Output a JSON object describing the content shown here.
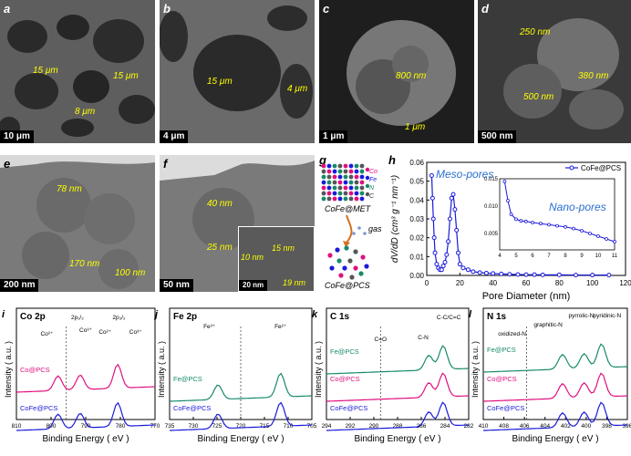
{
  "panels": {
    "a": {
      "label": "a",
      "scale": "10 μm",
      "annotations": [
        "15 μm",
        "15 μm",
        "8 μm"
      ]
    },
    "b": {
      "label": "b",
      "scale": "4 μm",
      "annotations": [
        "15 μm",
        "4 μm"
      ]
    },
    "c": {
      "label": "c",
      "scale": "1 μm",
      "annotations": [
        "800 nm",
        "1 μm"
      ]
    },
    "d": {
      "label": "d",
      "scale": "500 nm",
      "annotations": [
        "250 nm",
        "380 nm",
        "500 nm"
      ]
    },
    "e": {
      "label": "e",
      "scale": "200 nm",
      "annotations": [
        "78 nm",
        "170 nm",
        "100 nm"
      ]
    },
    "f": {
      "label": "f",
      "scale": "50 nm",
      "annotations": [
        "40 nm",
        "25 nm",
        "10 nm",
        "15 nm",
        "19 nm"
      ],
      "inset_scale": "20 nm"
    },
    "g": {
      "label": "g",
      "legend": [
        "Co",
        "Fe",
        "N",
        "C"
      ],
      "top_caption": "CoFe@MET",
      "gas": "gas",
      "bottom_caption": "CoFe@PCS"
    },
    "h": {
      "label": "h",
      "meso": "Meso-pores",
      "nano": "Nano-pores"
    },
    "i": {
      "label": "i",
      "title": "Co 2p",
      "peaks": [
        "Co²⁺",
        "2p₁/₂",
        "Co³⁺",
        "Co²⁺",
        "2p₃/₂",
        "Co³⁺"
      ],
      "samples": [
        "Co@PCS",
        "CoFe@PCS"
      ]
    },
    "j": {
      "label": "j",
      "title": "Fe 2p",
      "peaks": [
        "Fe³⁺",
        "Fe²⁺"
      ],
      "samples": [
        "Fe@PCS",
        "CoFe@PCS"
      ]
    },
    "k": {
      "label": "k",
      "title": "C 1s",
      "peaks": [
        "C=O",
        "C-N",
        "C-C/C=C"
      ],
      "samples": [
        "Fe@PCS",
        "Co@PCS",
        "CoFe@PCS"
      ]
    },
    "l": {
      "label": "l",
      "title": "N 1s",
      "peaks": [
        "oxidized-N",
        "graphitic-N",
        "pyrrolic-N",
        "pyridinic-N"
      ],
      "samples": [
        "Fe@PCS",
        "Co@PCS",
        "CoFe@PCS"
      ]
    }
  },
  "xps_axes": {
    "ylabel": "Intensity ( a.u. )",
    "xlabel": "Binding Energy ( eV )",
    "i_ticks": [
      "810",
      "800",
      "790",
      "780",
      "770"
    ],
    "j_ticks": [
      "735",
      "730",
      "725",
      "720",
      "715",
      "710",
      "705"
    ],
    "k_ticks": [
      "294",
      "292",
      "290",
      "288",
      "286",
      "284",
      "282"
    ],
    "l_ticks": [
      "410",
      "408",
      "406",
      "404",
      "402",
      "400",
      "398",
      "396"
    ]
  },
  "chart_data": {
    "type": "line",
    "title": "",
    "xlabel": "Pore Diameter (nm)",
    "ylabel": "dV/dD (cm³ g⁻¹ nm⁻¹)",
    "xlim": [
      0,
      120
    ],
    "ylim": [
      0,
      0.06
    ],
    "xticks": [
      0,
      20,
      40,
      60,
      80,
      100,
      120
    ],
    "yticks": [
      0.0,
      0.01,
      0.02,
      0.03,
      0.04,
      0.05,
      0.06
    ],
    "legend": "top-right",
    "color": "#1a1adb",
    "series": [
      {
        "name": "CoFe@PCS",
        "x": [
          3,
          3.5,
          4,
          4.5,
          5,
          6,
          7,
          8,
          9,
          10,
          11,
          12,
          13,
          14,
          15,
          16,
          17,
          18,
          19,
          20,
          22,
          25,
          28,
          32,
          36,
          40,
          45,
          50,
          55,
          60,
          65,
          70,
          80,
          90,
          100,
          110
        ],
        "y": [
          0.053,
          0.041,
          0.03,
          0.02,
          0.012,
          0.006,
          0.004,
          0.003,
          0.003,
          0.005,
          0.007,
          0.011,
          0.018,
          0.03,
          0.041,
          0.043,
          0.035,
          0.024,
          0.012,
          0.006,
          0.004,
          0.003,
          0.002,
          0.0015,
          0.0012,
          0.001,
          0.0008,
          0.0006,
          0.0005,
          0.0004,
          0.0004,
          0.0003,
          0.0003,
          0.0002,
          0.0002,
          0.0002
        ]
      }
    ],
    "inset": {
      "xlim": [
        4,
        11
      ],
      "ylim": [
        0.002,
        0.015
      ],
      "xticks": [
        4,
        5,
        6,
        7,
        8,
        9,
        10,
        11
      ],
      "yticks": [
        0.005,
        0.01,
        0.015
      ],
      "x": [
        4.3,
        4.5,
        4.7,
        5,
        5.3,
        5.6,
        6,
        6.5,
        7,
        7.5,
        8,
        8.5,
        9,
        9.5,
        10,
        10.5,
        11
      ],
      "y": [
        0.0145,
        0.011,
        0.0085,
        0.0076,
        0.0073,
        0.0072,
        0.007,
        0.0068,
        0.0066,
        0.0064,
        0.0062,
        0.0059,
        0.0055,
        0.005,
        0.0045,
        0.004,
        0.0035
      ]
    }
  },
  "colors": {
    "annotation": "#ffff00",
    "series": "#1a1adb",
    "co_pcs": "#e0107e",
    "fe_pcs": "#178a6b",
    "cofe_pcs": "#1a1adb"
  }
}
